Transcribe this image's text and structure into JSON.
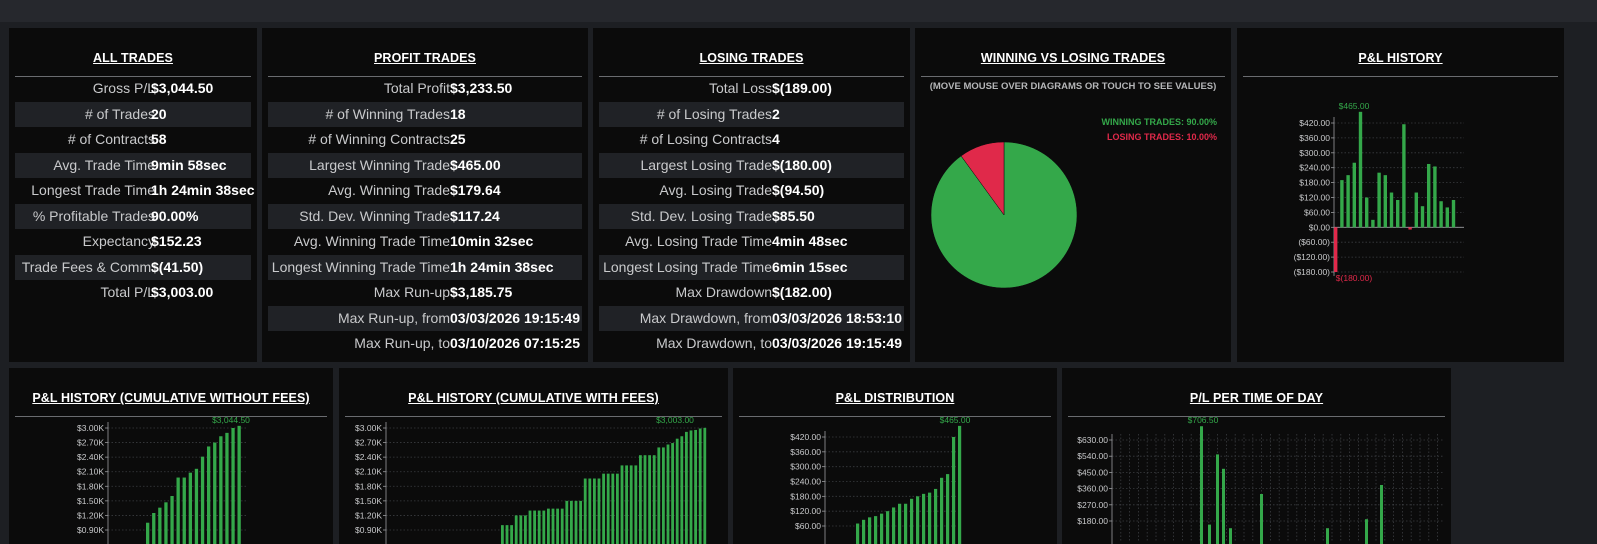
{
  "colors": {
    "green": "#34a84a",
    "red": "#e0294a",
    "bg": "#0b0b0b"
  },
  "all_trades": {
    "title": "ALL TRADES",
    "rows": [
      {
        "label": "Gross P/L",
        "value": "$3,044.50"
      },
      {
        "label": "# of Trades",
        "value": "20"
      },
      {
        "label": "# of Contracts",
        "value": "58"
      },
      {
        "label": "Avg. Trade Time",
        "value": "9min 58sec"
      },
      {
        "label": "Longest Trade Time",
        "value": "1h 24min 38sec"
      },
      {
        "label": "% Profitable Trades",
        "value": "90.00%"
      },
      {
        "label": "Expectancy",
        "value": "$152.23"
      },
      {
        "label": "Trade Fees & Comm.",
        "value": "$(41.50)"
      },
      {
        "label": "Total P/L",
        "value": "$3,003.00"
      }
    ]
  },
  "profit_trades": {
    "title": "PROFIT TRADES",
    "rows": [
      {
        "label": "Total Profit",
        "value": "$3,233.50"
      },
      {
        "label": "# of Winning Trades",
        "value": "18"
      },
      {
        "label": "# of Winning Contracts",
        "value": "25"
      },
      {
        "label": "Largest Winning Trade",
        "value": "$465.00"
      },
      {
        "label": "Avg. Winning Trade",
        "value": "$179.64"
      },
      {
        "label": "Std. Dev. Winning Trade",
        "value": "$117.24"
      },
      {
        "label": "Avg. Winning Trade Time",
        "value": "10min 32sec"
      },
      {
        "label": "Longest Winning Trade Time",
        "value": "1h 24min 38sec"
      },
      {
        "label": "Max Run-up",
        "value": "$3,185.75"
      },
      {
        "label": "Max Run-up, from",
        "value": "03/03/2026 19:15:49"
      },
      {
        "label": "Max Run-up, to",
        "value": "03/10/2026 07:15:25"
      }
    ]
  },
  "losing_trades": {
    "title": "LOSING TRADES",
    "rows": [
      {
        "label": "Total Loss",
        "value": "$(189.00)"
      },
      {
        "label": "# of Losing Trades",
        "value": "2"
      },
      {
        "label": "# of Losing Contracts",
        "value": "4"
      },
      {
        "label": "Largest Losing Trade",
        "value": "$(180.00)"
      },
      {
        "label": "Avg. Losing Trade",
        "value": "$(94.50)"
      },
      {
        "label": "Std. Dev. Losing Trade",
        "value": "$85.50"
      },
      {
        "label": "Avg. Losing Trade Time",
        "value": "4min 48sec"
      },
      {
        "label": "Longest Losing Trade Time",
        "value": "6min 15sec"
      },
      {
        "label": "Max Drawdown",
        "value": "$(182.00)"
      },
      {
        "label": "Max Drawdown, from",
        "value": "03/03/2026 18:53:10"
      },
      {
        "label": "Max Drawdown, to",
        "value": "03/03/2026 19:15:49"
      }
    ]
  },
  "win_vs_lose": {
    "title": "WINNING VS LOSING TRADES",
    "note": "(MOVE MOUSE OVER DIAGRAMS OR TOUCH TO SEE VALUES)",
    "winning_label": "WINNING TRADES: 90.00%",
    "losing_label": "LOSING TRADES: 10.00%"
  },
  "pl_history": {
    "title": "P&L HISTORY"
  },
  "cum_no_fees": {
    "title": "P&L HISTORY (CUMULATIVE WITHOUT FEES)"
  },
  "cum_fees": {
    "title": "P&L HISTORY (CUMULATIVE WITH FEES)"
  },
  "distribution": {
    "title": "P&L DISTRIBUTION"
  },
  "time_of_day": {
    "title": "P/L PER TIME OF DAY"
  },
  "chart_data": [
    {
      "id": "pie",
      "type": "pie",
      "labels": [
        "WINNING TRADES",
        "LOSING TRADES"
      ],
      "values": [
        90.0,
        10.0
      ],
      "colors": [
        "#34a84a",
        "#e0294a"
      ]
    },
    {
      "id": "pl_history",
      "type": "bar",
      "yticks": [
        "$420.00",
        "$360.00",
        "$300.00",
        "$240.00",
        "$180.00",
        "$120.00",
        "$60.00",
        "$0.00",
        "($60.00)",
        "($120.00)",
        "($180.00)"
      ],
      "ylim": [
        -180,
        465
      ],
      "values": [
        -180,
        190,
        210,
        260,
        465,
        120,
        30,
        220,
        210,
        140,
        110,
        415,
        -9,
        140,
        85,
        255,
        245,
        105,
        80,
        110
      ],
      "annotations": [
        "$465.00",
        "$(180.00)"
      ]
    },
    {
      "id": "cum_no_fees",
      "type": "bar",
      "yticks": [
        "$3.00K",
        "$2.70K",
        "$2.40K",
        "$2.10K",
        "$1.80K",
        "$1.50K",
        "$1.20K",
        "$0.90K"
      ],
      "ylim": [
        900,
        3044.5
      ],
      "values": [
        1050,
        1250,
        1360,
        1470,
        1600,
        1980,
        1980,
        2080,
        2160,
        2410,
        2620,
        2700,
        2830,
        2900,
        3000,
        3044.5
      ],
      "annotations": [
        "$3,044.50"
      ]
    },
    {
      "id": "cum_fees",
      "type": "bar",
      "yticks": [
        "$3.00K",
        "$2.70K",
        "$2.40K",
        "$2.10K",
        "$1.80K",
        "$1.50K",
        "$1.20K",
        "$0.90K"
      ],
      "ylim": [
        900,
        3003
      ],
      "values": [
        1000,
        1000,
        1000,
        1200,
        1200,
        1200,
        1300,
        1300,
        1300,
        1300,
        1340,
        1340,
        1340,
        1340,
        1500,
        1500,
        1500,
        1500,
        1960,
        1960,
        1960,
        1960,
        2060,
        2060,
        2060,
        2060,
        2230,
        2230,
        2230,
        2230,
        2440,
        2440,
        2440,
        2440,
        2600,
        2600,
        2660,
        2690,
        2780,
        2830,
        2920,
        2950,
        2960,
        2990,
        3003
      ],
      "annotations": [
        "$3,003.00"
      ]
    },
    {
      "id": "distribution",
      "type": "bar",
      "yticks": [
        "$420.00",
        "$360.00",
        "$300.00",
        "$240.00",
        "$180.00",
        "$120.00",
        "$60.00"
      ],
      "ylim": [
        40,
        465
      ],
      "values": [
        70,
        85,
        95,
        100,
        110,
        120,
        135,
        150,
        150,
        170,
        180,
        190,
        195,
        210,
        255,
        270,
        420,
        465
      ],
      "annotations": [
        "$465.00"
      ]
    },
    {
      "id": "time_of_day",
      "type": "bar",
      "yticks": [
        "$630.00",
        "$540.00",
        "$450.00",
        "$360.00",
        "$270.00",
        "$180.00"
      ],
      "ylim": [
        130,
        706.5
      ],
      "values": [
        706.5,
        160,
        550,
        470,
        140,
        330,
        140,
        190,
        380
      ],
      "annotations": [
        "$706.50"
      ]
    }
  ]
}
